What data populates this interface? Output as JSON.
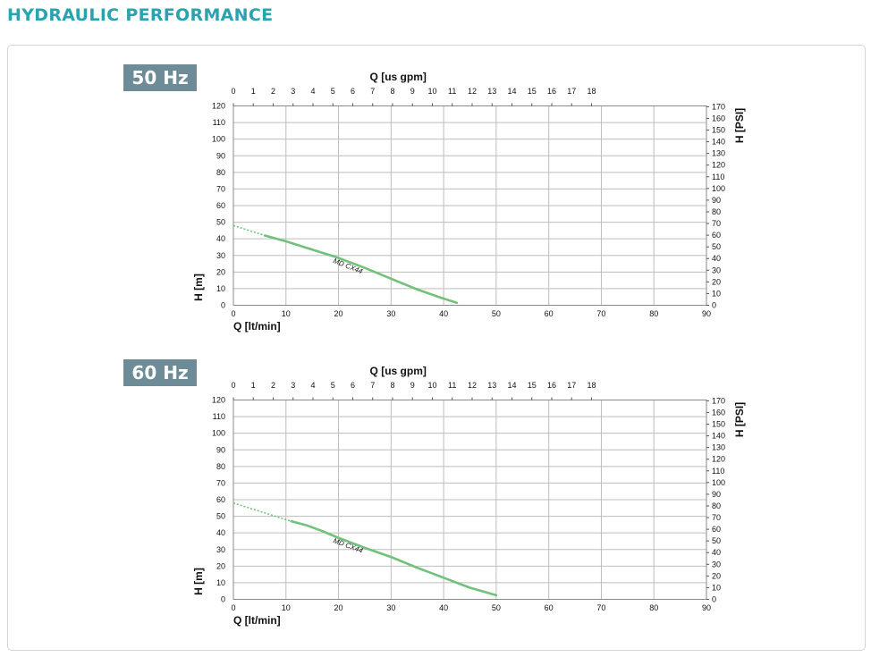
{
  "page": {
    "title": "HYDRAULIC PERFORMANCE"
  },
  "colors": {
    "title": "#2aa3b0",
    "badge": "#6d8c97",
    "curve": "#72c17a",
    "grid": "#bdbdbd",
    "border": "#d4d4d4"
  },
  "chart_data": [
    {
      "type": "line",
      "badge": "50 Hz",
      "xlabel": "Q [lt/min]",
      "x2label": "Q [us gpm]",
      "ylabel": "H [m]",
      "y2label": "H [PSI]",
      "xlim": [
        0,
        90
      ],
      "ylim": [
        0,
        120
      ],
      "x_ticks": [
        0,
        10,
        20,
        30,
        40,
        50,
        60,
        70,
        80,
        90
      ],
      "y_ticks": [
        0,
        10,
        20,
        30,
        40,
        50,
        60,
        70,
        80,
        90,
        100,
        110,
        120
      ],
      "x2_ticks": [
        0,
        1,
        2,
        3,
        4,
        5,
        6,
        7,
        8,
        9,
        10,
        11,
        12,
        13,
        14,
        15,
        16,
        17,
        18
      ],
      "y2_ticks": [
        0,
        10,
        20,
        30,
        40,
        50,
        60,
        70,
        80,
        90,
        100,
        110,
        120,
        130,
        140,
        150,
        160,
        170
      ],
      "grid": true,
      "series": [
        {
          "name": "MD CX44",
          "x": [
            0,
            6,
            10,
            15,
            20,
            25,
            30,
            35,
            40,
            42.5
          ],
          "y": [
            48,
            42,
            38.5,
            33.5,
            28.5,
            22.5,
            16,
            9.5,
            4,
            1.5
          ],
          "dashed_until_x": 6
        }
      ]
    },
    {
      "type": "line",
      "badge": "60 Hz",
      "xlabel": "Q [lt/min]",
      "x2label": "Q [us gpm]",
      "ylabel": "H [m]",
      "y2label": "H [PSI]",
      "xlim": [
        0,
        90
      ],
      "ylim": [
        0,
        120
      ],
      "x_ticks": [
        0,
        10,
        20,
        30,
        40,
        50,
        60,
        70,
        80,
        90
      ],
      "y_ticks": [
        0,
        10,
        20,
        30,
        40,
        50,
        60,
        70,
        80,
        90,
        100,
        110,
        120
      ],
      "x2_ticks": [
        0,
        1,
        2,
        3,
        4,
        5,
        6,
        7,
        8,
        9,
        10,
        11,
        12,
        13,
        14,
        15,
        16,
        17,
        18
      ],
      "y2_ticks": [
        0,
        10,
        20,
        30,
        40,
        50,
        60,
        70,
        80,
        90,
        100,
        110,
        120,
        130,
        140,
        150,
        160,
        170
      ],
      "grid": true,
      "series": [
        {
          "name": "MD CX44",
          "x": [
            0,
            11,
            14,
            17,
            20,
            25,
            30,
            35,
            40,
            45,
            50
          ],
          "y": [
            58,
            47,
            44.5,
            41,
            37,
            31,
            25.5,
            19,
            13,
            7,
            2.5
          ],
          "dashed_until_x": 11
        }
      ]
    }
  ]
}
